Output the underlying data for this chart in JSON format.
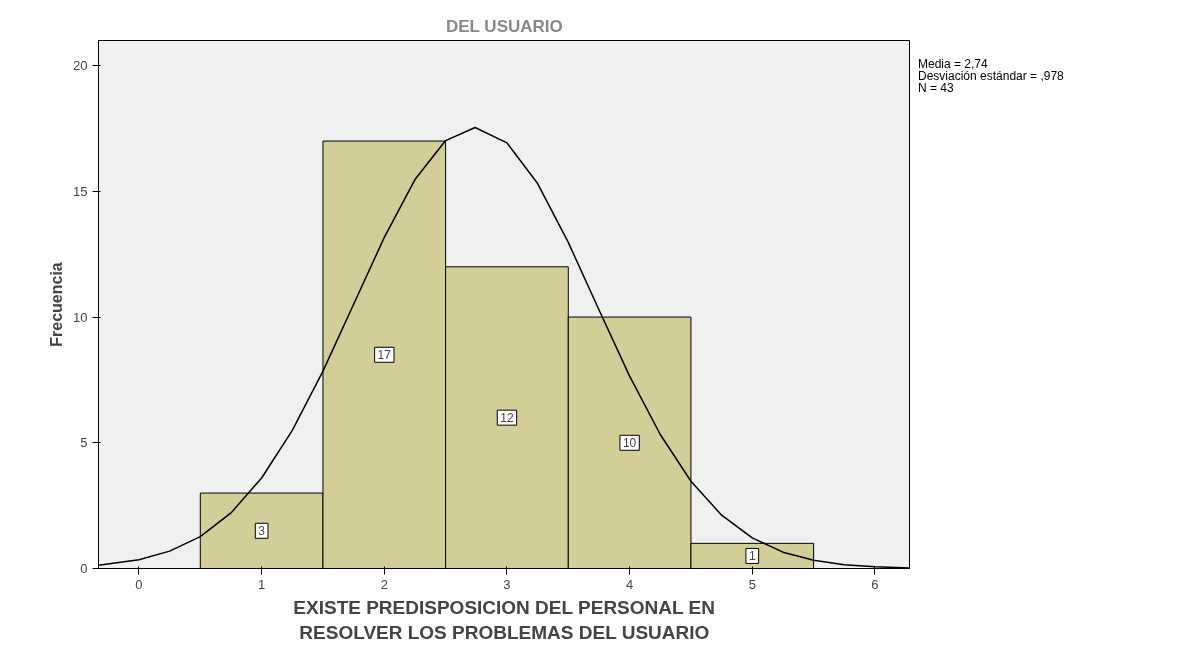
{
  "chart_data": {
    "type": "histogram",
    "title": "DEL USUARIO",
    "xlabel": "EXISTE PREDISPOSICION DEL PERSONAL EN\nRESOLVER LOS PROBLEMAS DEL USUARIO",
    "ylabel": "Frecuencia",
    "bins": [
      0.5,
      1.5,
      2.5,
      3.5,
      4.5,
      5.5
    ],
    "values": [
      3,
      17,
      12,
      10,
      1
    ],
    "color": "#d3ce98",
    "value_labels": [
      "3",
      "17",
      "12",
      "10",
      "1"
    ],
    "series": [
      {
        "type": "line",
        "color": "#000000",
        "x": [
          -0.33,
          0,
          0.25,
          0.5,
          0.75,
          1,
          1.25,
          1.5,
          1.75,
          2,
          2.25,
          2.5,
          2.74,
          3,
          3.25,
          3.5,
          3.75,
          4,
          4.25,
          4.5,
          4.75,
          5,
          5.25,
          5.5,
          5.75,
          6,
          6.29
        ],
        "values": [
          0.13,
          0.35,
          0.69,
          1.27,
          2.21,
          3.6,
          5.49,
          7.85,
          10.51,
          13.17,
          15.47,
          17.02,
          17.54,
          16.93,
          15.31,
          12.97,
          10.29,
          7.65,
          5.33,
          3.47,
          2.12,
          1.22,
          0.65,
          0.33,
          0.15,
          0.07,
          0.02
        ]
      }
    ],
    "xlim": [
      -0.33,
      6.29
    ],
    "ylim": [
      0,
      21
    ],
    "xticks": [
      0,
      1,
      2,
      3,
      4,
      5,
      6
    ],
    "yticks": [
      0,
      5,
      10,
      15,
      20
    ],
    "grid": false,
    "annotations": [
      "Media = 2,74",
      "Desviación estándar = ,978",
      "N = 43"
    ]
  }
}
